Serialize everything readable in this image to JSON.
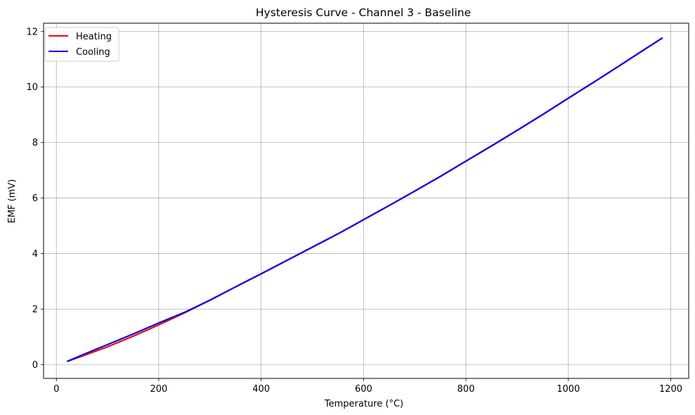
{
  "chart_data": {
    "type": "line",
    "title": "Hysteresis Curve - Channel 3 - Baseline",
    "xlabel": "Temperature (°C)",
    "ylabel": "EMF (mV)",
    "xlim": [
      -25,
      1235
    ],
    "ylim": [
      -0.5,
      12.3
    ],
    "xticks": [
      0,
      200,
      400,
      600,
      800,
      1000,
      1200
    ],
    "yticks": [
      0,
      2,
      4,
      6,
      8,
      10,
      12
    ],
    "grid": true,
    "legend_position": "top-left",
    "series": [
      {
        "name": "Heating",
        "color": "#ff0000",
        "x": [
          22,
          50,
          100,
          150,
          200,
          250,
          300,
          350,
          400,
          450,
          500,
          550,
          600,
          650,
          700,
          750,
          800,
          850,
          900,
          950,
          1000,
          1050,
          1100,
          1150,
          1183
        ],
        "y": [
          0.12,
          0.3,
          0.64,
          1.02,
          1.43,
          1.86,
          2.32,
          2.8,
          3.27,
          3.75,
          4.23,
          4.71,
          5.22,
          5.73,
          6.25,
          6.78,
          7.33,
          7.88,
          8.44,
          9.01,
          9.6,
          10.18,
          10.77,
          11.37,
          11.76
        ]
      },
      {
        "name": "Cooling",
        "color": "#0000ff",
        "x": [
          1183,
          1150,
          1100,
          1050,
          1000,
          950,
          900,
          850,
          800,
          750,
          700,
          650,
          600,
          550,
          500,
          450,
          400,
          350,
          300,
          250,
          200,
          150,
          100,
          50,
          22
        ],
        "y": [
          11.76,
          11.37,
          10.77,
          10.18,
          9.6,
          9.01,
          8.44,
          7.88,
          7.33,
          6.78,
          6.25,
          5.73,
          5.22,
          4.71,
          4.23,
          3.75,
          3.27,
          2.8,
          2.32,
          1.88,
          1.5,
          1.1,
          0.72,
          0.34,
          0.12
        ]
      }
    ]
  }
}
